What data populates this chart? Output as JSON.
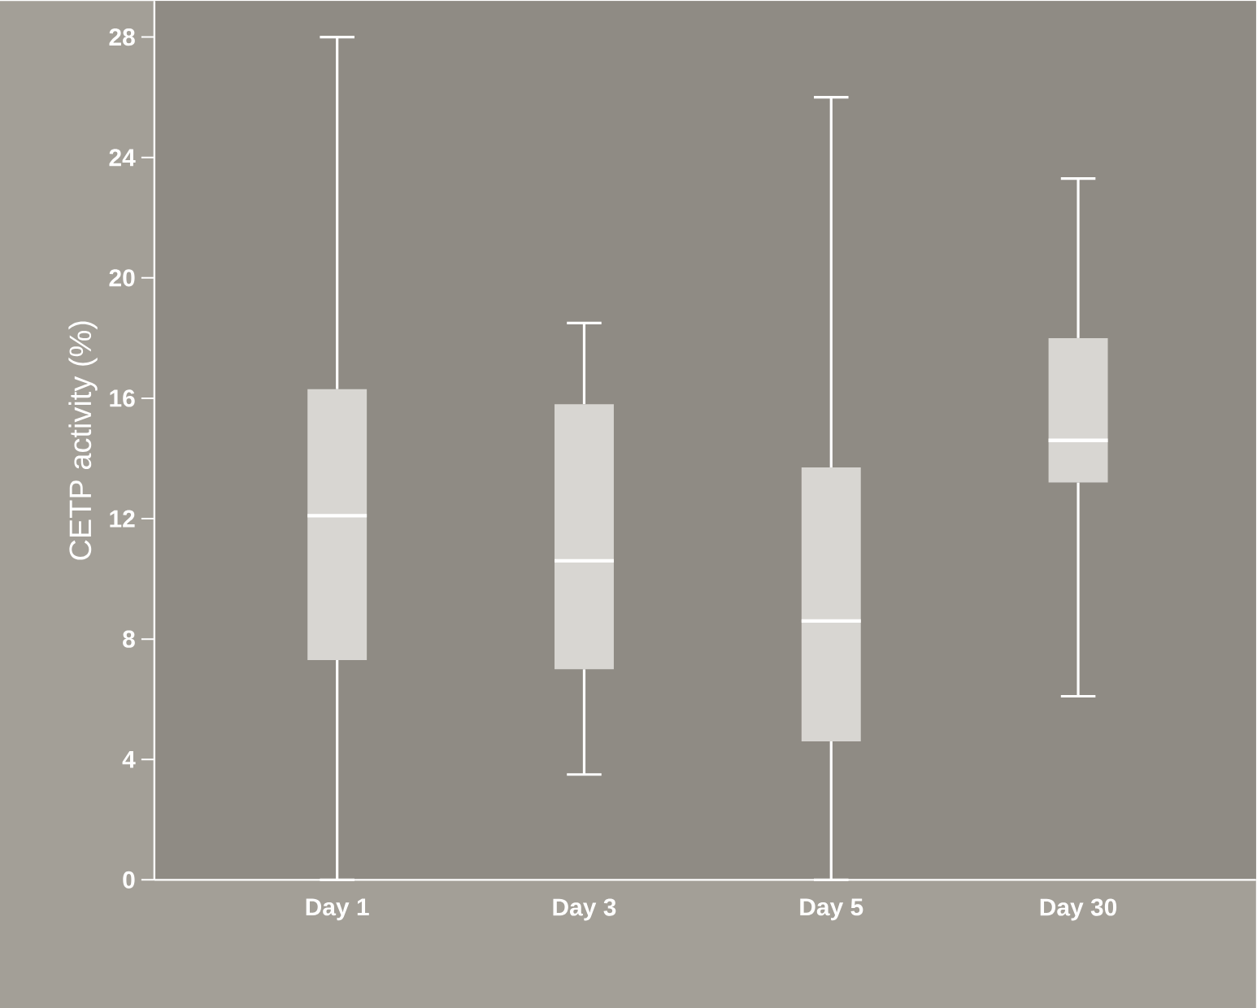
{
  "chart_data": {
    "type": "box",
    "ylabel": "CETP activity (%)",
    "categories": [
      "Day 1",
      "Day 3",
      "Day 5",
      "Day 30"
    ],
    "ylim": [
      0,
      29.2
    ],
    "yticks": [
      0,
      4,
      8,
      12,
      16,
      20,
      24,
      28
    ],
    "series": [
      {
        "color": "#d8d6d2",
        "boxes": [
          {
            "low": 0,
            "q1": 7.3,
            "median": 12.1,
            "q3": 16.3,
            "high": 28
          },
          {
            "low": 3.5,
            "q1": 7.0,
            "median": 10.6,
            "q3": 15.8,
            "high": 18.5
          },
          {
            "low": 0,
            "q1": 4.6,
            "median": 8.6,
            "q3": 13.7,
            "high": 26
          },
          {
            "low": 6.1,
            "q1": 13.2,
            "median": 14.6,
            "q3": 18.0,
            "high": 23.3
          }
        ]
      }
    ]
  }
}
